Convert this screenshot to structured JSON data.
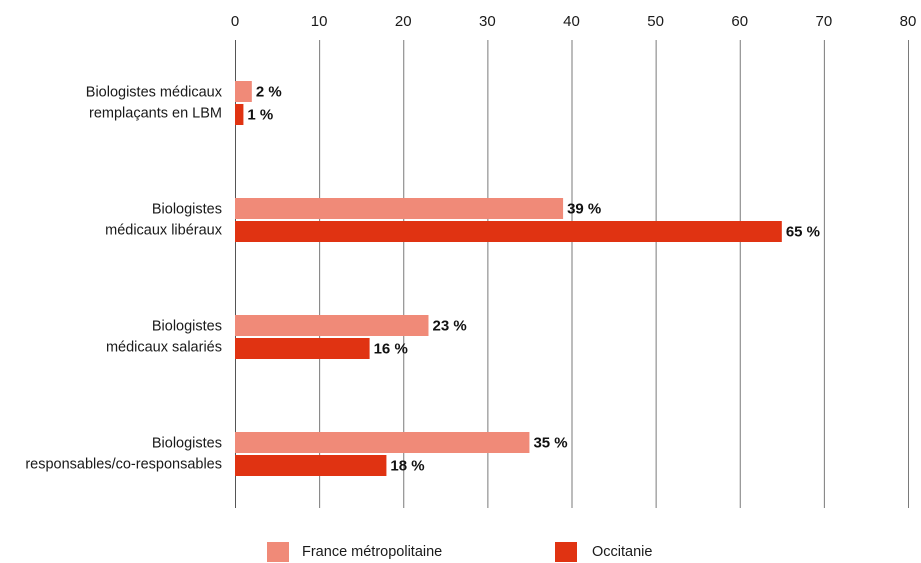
{
  "chart_data": {
    "type": "bar",
    "orientation": "horizontal",
    "title": "",
    "xlabel": "",
    "ylabel": "",
    "xlim": [
      0,
      80
    ],
    "x_ticks": [
      "0",
      "10",
      "20",
      "30",
      "40",
      "50",
      "60",
      "70",
      "80"
    ],
    "grid": "vertical",
    "legend_position": "bottom",
    "categories": [
      [
        "Biologistes médicaux",
        "remplaçants en LBM"
      ],
      [
        "Biologistes",
        "médicaux libéraux"
      ],
      [
        "Biologistes",
        "médicaux salariés"
      ],
      [
        "Biologistes",
        "responsables/co-responsables"
      ]
    ],
    "series": [
      {
        "name": "France métropolitaine",
        "color": "#f08a78",
        "values": [
          2,
          39,
          23,
          35
        ],
        "labels": [
          "2 %",
          "39 %",
          "23 %",
          "35 %"
        ]
      },
      {
        "name": "Occitanie",
        "color": "#e03312",
        "values": [
          1,
          65,
          16,
          18
        ],
        "labels": [
          "1 %",
          "65 %",
          "16 %",
          "18 %"
        ]
      }
    ]
  }
}
